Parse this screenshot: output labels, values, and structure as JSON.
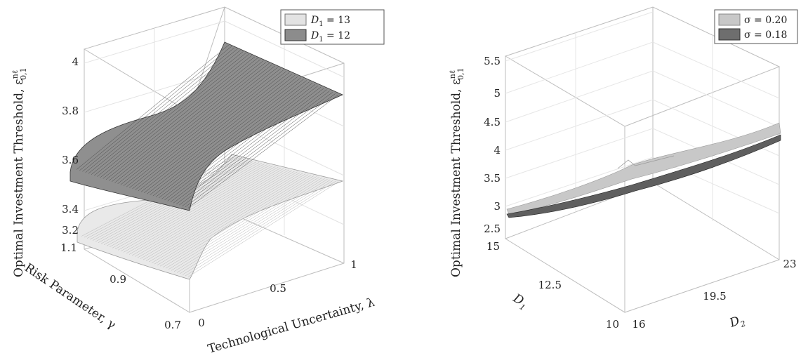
{
  "charts": [
    {
      "ylabel": "Optimal Investment Threshold, ε",
      "ylabel_sup": "nℓ",
      "ylabel_sub": "0,1",
      "xlabel": "Technological Uncertainty, λ",
      "zlabel": "Risk Parameter, γ",
      "zticks": [
        "4",
        "3.8",
        "3.6",
        "3.4",
        "3.2"
      ],
      "xticks": [
        "0",
        "0.5",
        "1"
      ],
      "gticks": [
        "1.1",
        "0.9",
        "0.7"
      ],
      "legend": [
        {
          "prefix": "D",
          "sub": "1",
          "eq": " = 13",
          "color": "#e3e3e3"
        },
        {
          "prefix": "D",
          "sub": "1",
          "eq": " = 12",
          "color": "#8c8c8c"
        }
      ]
    },
    {
      "ylabel": "Optimal Investment Threshold, ε",
      "ylabel_sup": "nℓ",
      "ylabel_sub": "0,1",
      "xlabel": "D",
      "xlabel_sub": "2",
      "zlabel": "D",
      "zlabel_sub": "1",
      "zticks": [
        "5.5",
        "5",
        "4.5",
        "4",
        "3.5",
        "3",
        "2.5"
      ],
      "xticks": [
        "16",
        "19.5",
        "23"
      ],
      "gticks": [
        "15",
        "12.5",
        "10"
      ],
      "legend": [
        {
          "text": "σ = 0.20",
          "color": "#c8c8c8"
        },
        {
          "text": "σ = 0.18",
          "color": "#6e6e6e"
        }
      ]
    }
  ],
  "chart_data": [
    {
      "type": "surface",
      "x_axis": {
        "label": "Technological Uncertainty, λ",
        "range": [
          0,
          1
        ]
      },
      "y_axis": {
        "label": "Risk Parameter, γ",
        "range": [
          0.7,
          1.1
        ]
      },
      "z_axis": {
        "label": "Optimal Investment Threshold",
        "range": [
          3.2,
          4
        ]
      },
      "series": [
        {
          "name": "D1 = 13",
          "lambda": [
            0,
            0.1,
            0.3,
            0.5,
            1
          ],
          "threshold_at_gamma_1.1": [
            3.27,
            3.34,
            3.4,
            3.42,
            3.45
          ],
          "threshold_at_gamma_0.7": [
            3.2,
            3.28,
            3.35,
            3.37,
            3.4
          ]
        },
        {
          "name": "D1 = 12",
          "lambda": [
            0,
            0.1,
            0.3,
            0.5,
            1
          ],
          "threshold_at_gamma_1.1": [
            3.62,
            3.78,
            3.87,
            3.92,
            3.97
          ],
          "threshold_at_gamma_0.7": [
            3.52,
            3.66,
            3.76,
            3.8,
            3.86
          ]
        }
      ]
    },
    {
      "type": "surface",
      "x_axis": {
        "label": "D2",
        "range": [
          16,
          23
        ]
      },
      "y_axis": {
        "label": "D1",
        "range": [
          10,
          15
        ]
      },
      "z_axis": {
        "label": "Optimal Investment Threshold",
        "range": [
          2.5,
          5.5
        ]
      },
      "series": [
        {
          "name": "σ = 0.20",
          "d2": [
            16,
            19.5,
            23
          ],
          "threshold_at_d1_15": [
            2.9,
            3.4,
            4.1
          ],
          "threshold_at_d1_10": [
            2.85,
            3.3,
            4.0
          ]
        },
        {
          "name": "σ = 0.18",
          "d2": [
            16,
            19.5,
            23
          ],
          "threshold_at_d1_15": [
            2.8,
            3.3,
            3.95
          ],
          "threshold_at_d1_10": [
            2.75,
            3.2,
            3.9
          ]
        }
      ]
    }
  ]
}
